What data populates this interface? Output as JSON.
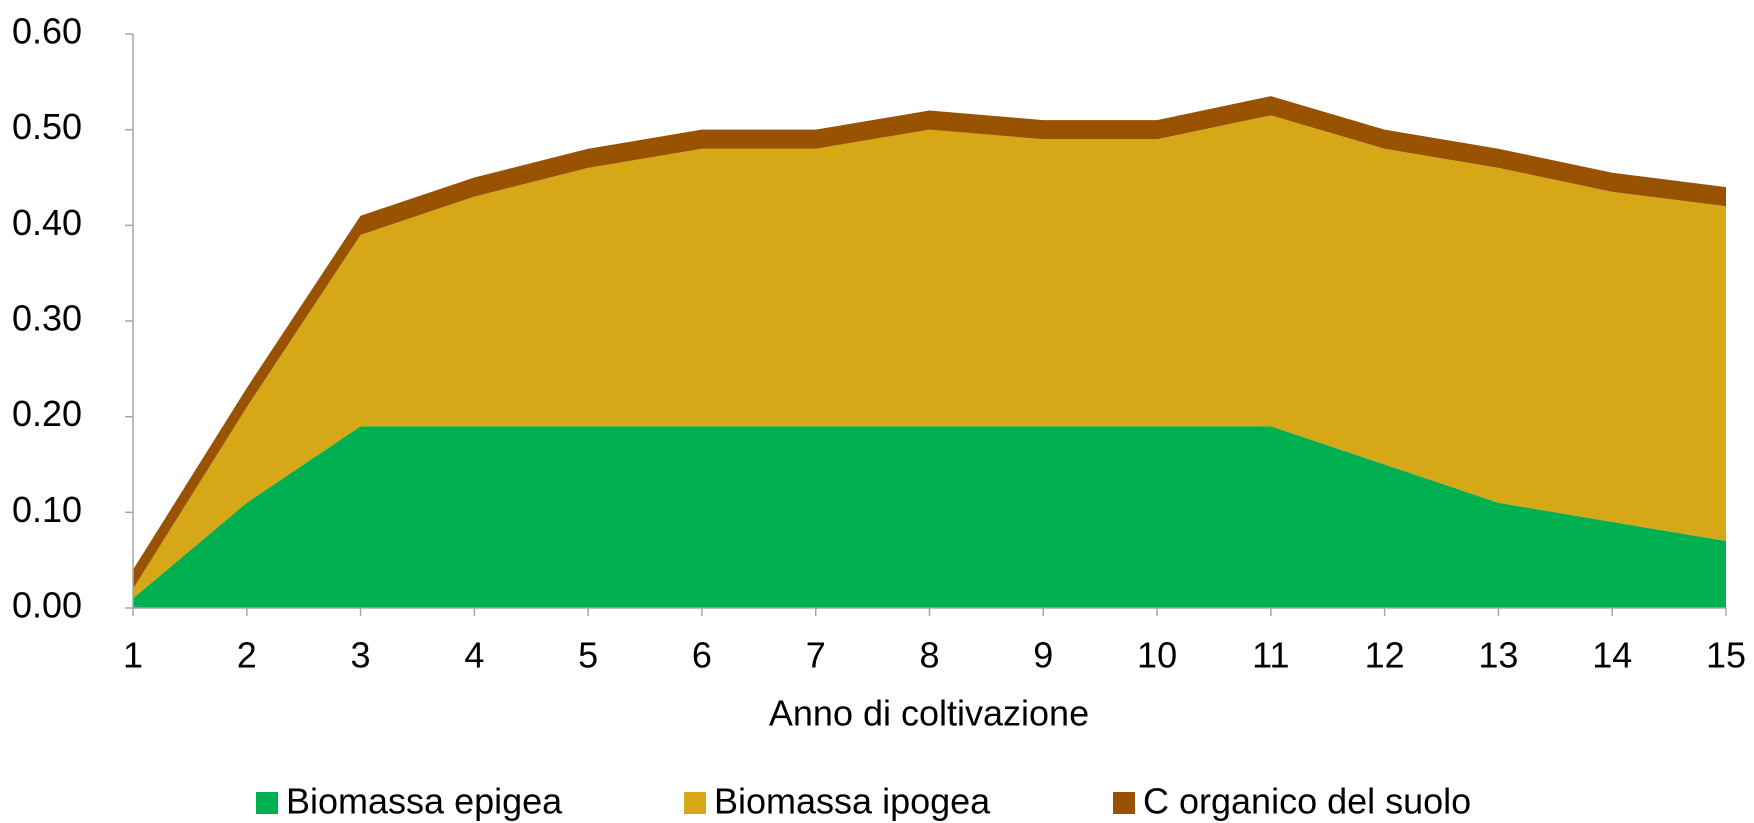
{
  "chart_data": {
    "type": "stacked_area",
    "x_label": "Anno di coltivazione",
    "x": [
      1,
      2,
      3,
      4,
      5,
      6,
      7,
      8,
      9,
      10,
      11,
      12,
      13,
      14,
      15
    ],
    "series": [
      {
        "name": "Biomassa epigea",
        "color": "#00b050",
        "values": [
          0.01,
          0.11,
          0.19,
          0.19,
          0.19,
          0.19,
          0.19,
          0.19,
          0.19,
          0.19,
          0.19,
          0.15,
          0.11,
          0.09,
          0.07
        ]
      },
      {
        "name": "Biomassa ipogea",
        "color": "#d6a817",
        "values": [
          0.01,
          0.1,
          0.2,
          0.24,
          0.27,
          0.29,
          0.29,
          0.31,
          0.3,
          0.3,
          0.325,
          0.33,
          0.35,
          0.345,
          0.35
        ]
      },
      {
        "name": "C organico del suolo",
        "color": "#995200",
        "values": [
          0.02,
          0.02,
          0.02,
          0.02,
          0.02,
          0.02,
          0.02,
          0.02,
          0.02,
          0.02,
          0.02,
          0.02,
          0.02,
          0.02,
          0.02
        ]
      }
    ],
    "xlim": [
      1,
      15
    ],
    "xticks": [
      1,
      2,
      3,
      4,
      5,
      6,
      7,
      8,
      9,
      10,
      11,
      12,
      13,
      14,
      15
    ],
    "ylim": [
      0,
      0.6
    ],
    "yticks": [
      {
        "value": 0,
        "label": "0.00"
      },
      {
        "value": 0.1,
        "label": "0.10"
      },
      {
        "value": 0.2,
        "label": "0.20"
      },
      {
        "value": 0.3,
        "label": "0.30"
      },
      {
        "value": 0.4,
        "label": "0.40"
      },
      {
        "value": 0.5,
        "label": "0.50"
      },
      {
        "value": 0.6,
        "label": "0.60"
      }
    ],
    "grid": false,
    "legend": "bottom"
  }
}
